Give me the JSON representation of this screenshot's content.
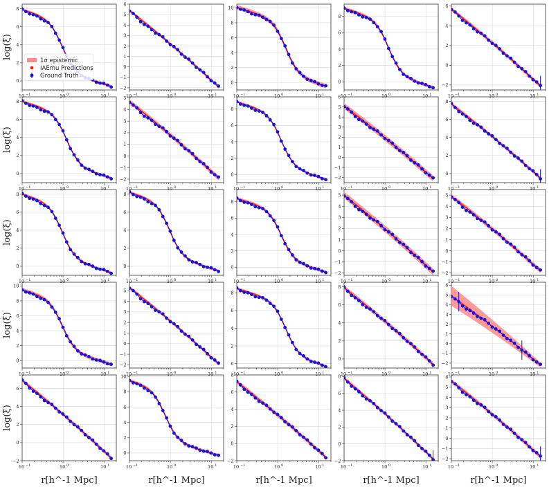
{
  "chart_data": {
    "type": "line",
    "layout": {
      "rows": 5,
      "cols": 5
    },
    "xlabel": "r[h^-1 Mpc]",
    "ylabel": "log(ξ)",
    "xscale": "log",
    "xlim": [
      0.1,
      20
    ],
    "grid": true,
    "legend": {
      "placement": "lower-left of first panel",
      "entries": [
        "1σ epistemic",
        "IAEmu Predictions",
        "Ground Truth"
      ]
    },
    "colors": {
      "band": "#ff8a8a",
      "prediction": "#ff1a1a",
      "truth": "#1515d8"
    },
    "x_tick_labels": [
      "10^-1",
      "10^0",
      "10^1"
    ],
    "panels": [
      {
        "ylim": [
          -1,
          8.5
        ],
        "yticks": [
          0,
          2,
          4,
          6,
          8
        ],
        "shape": "step",
        "start": 7.9,
        "end": -0.6,
        "knee": 0.45,
        "band": 0.15,
        "err": [
          28
        ],
        "legend": true
      },
      {
        "ylim": [
          -2.2,
          6
        ],
        "yticks": [
          -2,
          -1,
          0,
          1,
          2,
          3,
          4,
          5,
          6
        ],
        "shape": "linear",
        "start": 5.4,
        "end": -1.9,
        "band": 0.15,
        "err": [
          25,
          26
        ]
      },
      {
        "ylim": [
          -1,
          10.5
        ],
        "yticks": [
          0,
          2,
          4,
          6,
          8,
          10
        ],
        "shape": "step",
        "start": 10.1,
        "end": -0.5,
        "knee": 0.55,
        "band": 0.3,
        "err": []
      },
      {
        "ylim": [
          -1,
          9.5
        ],
        "yticks": [
          0,
          2,
          4,
          6,
          8
        ],
        "shape": "step",
        "start": 9.0,
        "end": -0.7,
        "knee": 0.5,
        "band": 0.2,
        "err": [
          28
        ]
      },
      {
        "ylim": [
          -2.5,
          6.2
        ],
        "yticks": [
          -2,
          0,
          2,
          4,
          6
        ],
        "shape": "linear",
        "start": 5.7,
        "end": -2.1,
        "band": 0.2,
        "err": [
          24
        ]
      },
      {
        "ylim": [
          -1,
          8.5
        ],
        "yticks": [
          0,
          2,
          4,
          6,
          8
        ],
        "shape": "step",
        "start": 8.0,
        "end": -0.5,
        "knee": 0.5,
        "band": 0.15,
        "err": [
          28
        ]
      },
      {
        "ylim": [
          -2.3,
          5.1
        ],
        "yticks": [
          -2,
          -1,
          0,
          1,
          2,
          3,
          4,
          5
        ],
        "shape": "linear",
        "start": 4.7,
        "end": -1.9,
        "band": 0.2,
        "err": []
      },
      {
        "ylim": [
          -1,
          9.5
        ],
        "yticks": [
          0,
          2,
          4,
          6,
          8
        ],
        "shape": "step",
        "start": 8.9,
        "end": -0.6,
        "knee": 0.5,
        "band": 0.15,
        "err": []
      },
      {
        "ylim": [
          -2.5,
          6
        ],
        "yticks": [
          -2,
          -1,
          0,
          1,
          2,
          3,
          4,
          5,
          6
        ],
        "shape": "linear",
        "start": 5.1,
        "end": -2.1,
        "band": 0.3,
        "err": []
      },
      {
        "ylim": [
          -1,
          8.5
        ],
        "yticks": [
          0,
          2,
          4,
          6,
          8
        ],
        "shape": "linear",
        "start": 7.7,
        "end": -0.5,
        "band": 0.2,
        "err": [
          24
        ]
      },
      {
        "ylim": [
          -1,
          8.5
        ],
        "yticks": [
          0,
          2,
          4,
          6,
          8
        ],
        "shape": "step",
        "start": 8.0,
        "end": -0.7,
        "knee": 0.45,
        "band": 0.15,
        "err": []
      },
      {
        "ylim": [
          -1,
          8.5
        ],
        "yticks": [
          0,
          2,
          4,
          6,
          8
        ],
        "shape": "step",
        "start": 8.2,
        "end": -0.5,
        "knee": 0.45,
        "band": 0.15,
        "err": [
          25
        ]
      },
      {
        "ylim": [
          -1,
          9.5
        ],
        "yticks": [
          0,
          2,
          4,
          6,
          8
        ],
        "shape": "step",
        "start": 8.4,
        "end": -0.6,
        "knee": 0.5,
        "band": 0.2,
        "err": [
          26
        ]
      },
      {
        "ylim": [
          -2.2,
          5.5
        ],
        "yticks": [
          -2,
          -1,
          0,
          1,
          2,
          3,
          4,
          5
        ],
        "shape": "linear",
        "start": 5.0,
        "end": -1.9,
        "band": 0.3,
        "err": []
      },
      {
        "ylim": [
          -2.2,
          5.5
        ],
        "yticks": [
          -2,
          -1,
          0,
          1,
          2,
          3,
          4,
          5
        ],
        "shape": "linear",
        "start": 4.9,
        "end": -1.8,
        "band": 0.2,
        "err": []
      },
      {
        "ylim": [
          -1,
          10.5
        ],
        "yticks": [
          0,
          2,
          4,
          6,
          8,
          10
        ],
        "shape": "step",
        "start": 9.5,
        "end": -0.5,
        "knee": 0.45,
        "band": 0.25,
        "err": []
      },
      {
        "ylim": [
          -2.3,
          5.8
        ],
        "yticks": [
          -2,
          -1,
          0,
          1,
          2,
          3,
          4,
          5
        ],
        "shape": "linear",
        "start": 5.3,
        "end": -1.9,
        "band": 0.15,
        "err": []
      },
      {
        "ylim": [
          -0.5,
          9.2
        ],
        "yticks": [
          0,
          2,
          4,
          6,
          8
        ],
        "shape": "step",
        "start": 8.5,
        "end": -0.3,
        "knee": 0.55,
        "band": 0.15,
        "err": []
      },
      {
        "ylim": [
          -1,
          8.5
        ],
        "yticks": [
          0,
          2,
          4,
          6,
          8
        ],
        "shape": "linear",
        "start": 7.9,
        "end": -0.6,
        "band": 0.25,
        "err": [
          25
        ]
      },
      {
        "ylim": [
          -2.5,
          6.3
        ],
        "yticks": [
          -2,
          -1,
          0,
          1,
          2,
          3,
          4,
          5,
          6
        ],
        "shape": "linear",
        "start": 4.9,
        "end": -2.2,
        "band": 0.9,
        "err": [
          2,
          19
        ],
        "wide": true
      },
      {
        "ylim": [
          -2,
          7.5
        ],
        "yticks": [
          -2,
          0,
          2,
          4,
          6
        ],
        "shape": "linear",
        "start": 6.9,
        "end": -1.7,
        "band": 0.2,
        "err": []
      },
      {
        "ylim": [
          -1,
          10.2
        ],
        "yticks": [
          0,
          2,
          4,
          6,
          8,
          10
        ],
        "shape": "step",
        "start": 9.5,
        "end": -0.3,
        "knee": 0.4,
        "band": 0.2,
        "err": [
          26
        ]
      },
      {
        "ylim": [
          -2,
          8
        ],
        "yticks": [
          -2,
          0,
          2,
          4,
          6,
          8
        ],
        "shape": "linear",
        "start": 7.2,
        "end": -1.6,
        "band": 0.25,
        "err": [
          26
        ]
      },
      {
        "ylim": [
          -2,
          8.2
        ],
        "yticks": [
          -2,
          0,
          2,
          4,
          6,
          8
        ],
        "shape": "linear",
        "start": 7.8,
        "end": -1.8,
        "band": 0.2,
        "err": [
          24
        ]
      },
      {
        "ylim": [
          -2.2,
          6.2
        ],
        "yticks": [
          -2,
          -1,
          0,
          1,
          2,
          3,
          4,
          5,
          6
        ],
        "shape": "linear",
        "start": 5.6,
        "end": -1.8,
        "band": 0.2,
        "err": [
          24
        ]
      }
    ]
  }
}
